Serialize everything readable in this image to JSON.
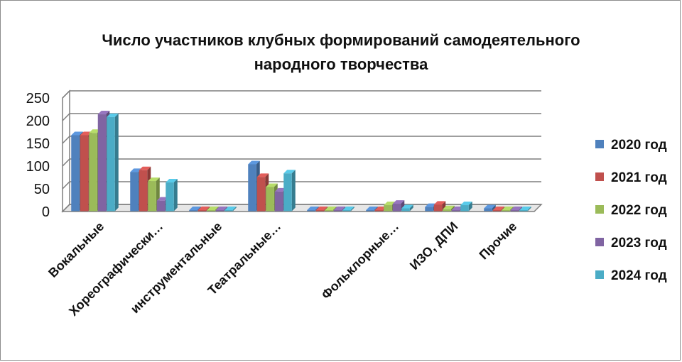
{
  "chart_data": {
    "type": "bar",
    "title_lines": [
      "Число участников клубных формирований самодеятельного",
      "народного творчества"
    ],
    "categories": [
      "Вокальные",
      "Хореографически…",
      "инструментальные",
      "Театральные…",
      "",
      "Фольклорные…",
      "ИЗО, ДПИ",
      "Прочие"
    ],
    "series": [
      {
        "name": "2020 год",
        "color": "#4f81bd",
        "values": [
          168,
          87,
          0,
          104,
          0,
          0,
          10,
          7
        ]
      },
      {
        "name": "2021 год",
        "color": "#c0504d",
        "values": [
          168,
          91,
          0,
          76,
          0,
          0,
          15,
          0
        ]
      },
      {
        "name": "2022 год",
        "color": "#9bbb59",
        "values": [
          173,
          67,
          0,
          54,
          0,
          14,
          5,
          0
        ]
      },
      {
        "name": "2023 год",
        "color": "#8064a2",
        "values": [
          214,
          24,
          0,
          44,
          0,
          17,
          0,
          0
        ]
      },
      {
        "name": "2024 год",
        "color": "#4bacc6",
        "values": [
          208,
          64,
          0,
          84,
          0,
          7,
          14,
          0
        ]
      }
    ],
    "yticks": [
      0,
      50,
      100,
      150,
      200,
      250
    ],
    "ylim": [
      0,
      250
    ],
    "grid": true,
    "legend_position": "right"
  }
}
